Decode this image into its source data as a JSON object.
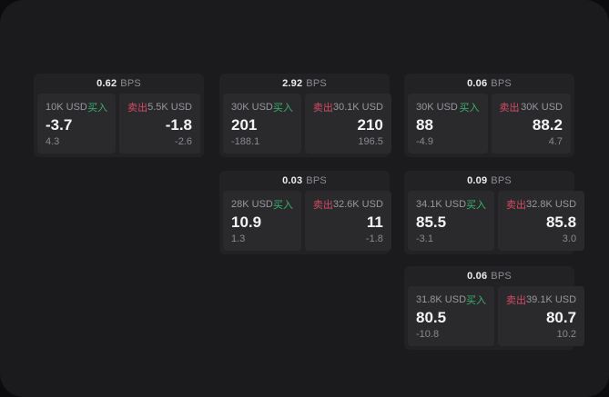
{
  "page": {
    "background": "#0c0c0e",
    "panel_background": "#1b1b1d",
    "card_background": "#222225",
    "tile_background": "#2a2a2d"
  },
  "colors": {
    "buy_green": "#39b26e",
    "sell_red": "#d64a63",
    "value_white": "#f4f4f5",
    "label_gray": "#98989d"
  },
  "labels": {
    "bps_unit": "BPS",
    "buy": "买入",
    "sell": "卖出"
  },
  "cards": [
    {
      "bps": "0.62",
      "buy": {
        "size": "10K USD",
        "value": "-3.7",
        "delta": "4.3"
      },
      "sell": {
        "size": "5.5K USD",
        "value": "-1.8",
        "delta": "-2.6"
      }
    },
    {
      "bps": "2.92",
      "buy": {
        "size": "30K USD",
        "value": "201",
        "delta": "-188.1"
      },
      "sell": {
        "size": "30.1K USD",
        "value": "210",
        "delta": "196.5"
      }
    },
    {
      "bps": "0.06",
      "buy": {
        "size": "30K USD",
        "value": "88",
        "delta": "-4.9"
      },
      "sell": {
        "size": "30K USD",
        "value": "88.2",
        "delta": "4.7"
      }
    },
    {
      "bps": "0.03",
      "buy": {
        "size": "28K USD",
        "value": "10.9",
        "delta": "1.3"
      },
      "sell": {
        "size": "32.6K USD",
        "value": "11",
        "delta": "-1.8"
      }
    },
    {
      "bps": "0.09",
      "buy": {
        "size": "34.1K USD",
        "value": "85.5",
        "delta": "-3.1"
      },
      "sell": {
        "size": "32.8K USD",
        "value": "85.8",
        "delta": "3.0"
      }
    },
    {
      "bps": "0.06",
      "buy": {
        "size": "31.8K USD",
        "value": "80.5",
        "delta": "-10.8"
      },
      "sell": {
        "size": "39.1K USD",
        "value": "80.7",
        "delta": "10.2"
      }
    }
  ]
}
